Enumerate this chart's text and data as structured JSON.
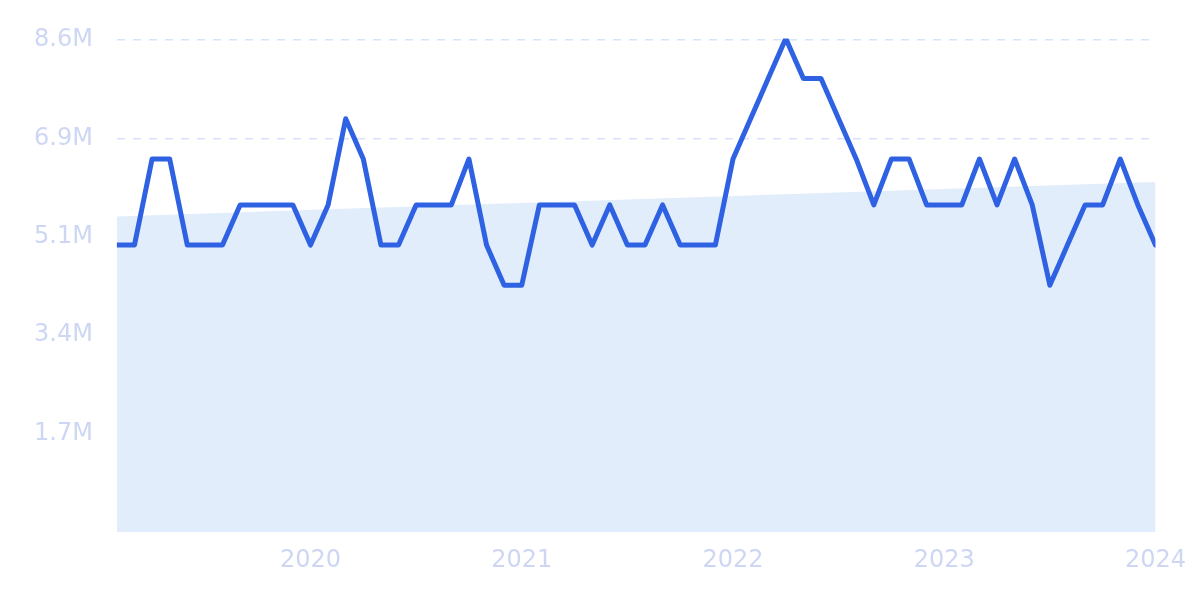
{
  "chart_data": {
    "type": "line",
    "marker": "none",
    "grid": "y",
    "x": [
      "2019-02",
      "2019-03",
      "2019-04",
      "2019-05",
      "2019-06",
      "2019-07",
      "2019-08",
      "2019-09",
      "2019-10",
      "2019-11",
      "2019-12",
      "2020-01",
      "2020-02",
      "2020-03",
      "2020-04",
      "2020-05",
      "2020-06",
      "2020-07",
      "2020-08",
      "2020-09",
      "2020-10",
      "2020-11",
      "2020-12",
      "2021-01",
      "2021-02",
      "2021-03",
      "2021-04",
      "2021-05",
      "2021-06",
      "2021-07",
      "2021-08",
      "2021-09",
      "2021-10",
      "2021-11",
      "2021-12",
      "2022-01",
      "2022-02",
      "2022-03",
      "2022-04",
      "2022-05",
      "2022-06",
      "2022-07",
      "2022-08",
      "2022-09",
      "2022-10",
      "2022-11",
      "2022-12",
      "2023-01",
      "2023-02",
      "2023-03",
      "2023-04",
      "2023-05",
      "2023-06",
      "2023-07",
      "2023-08",
      "2023-09",
      "2023-10",
      "2023-11",
      "2023-12",
      "2024-01"
    ],
    "series": [
      {
        "type": "area",
        "color": "#e2edfb",
        "x": [
          "2019-02",
          "2024-01"
        ],
        "values": [
          5.5,
          6.1
        ]
      },
      {
        "color": "#2f62e3",
        "values": [
          5.0,
          5.0,
          6.5,
          6.5,
          5.0,
          5.0,
          5.0,
          5.7,
          5.7,
          5.7,
          5.7,
          5.0,
          5.7,
          7.2,
          6.5,
          5.0,
          5.0,
          5.7,
          5.7,
          5.7,
          6.5,
          5.0,
          4.3,
          4.3,
          5.7,
          5.7,
          5.7,
          5.0,
          5.7,
          5.0,
          5.0,
          5.7,
          5.0,
          5.0,
          5.0,
          6.5,
          7.2,
          7.9,
          8.6,
          7.9,
          7.9,
          7.2,
          6.5,
          5.7,
          6.5,
          6.5,
          5.7,
          5.7,
          5.7,
          6.5,
          5.7,
          6.5,
          5.7,
          4.3,
          5.0,
          5.7,
          5.7,
          6.5,
          5.7,
          5.0
        ]
      }
    ],
    "xlim": [
      "2019-02",
      "2024-01"
    ],
    "xticks": [
      {
        "value": "2020",
        "label": "2020"
      },
      {
        "value": "2021",
        "label": "2021"
      },
      {
        "value": "2022",
        "label": "2022"
      },
      {
        "value": "2023",
        "label": "2023"
      },
      {
        "value": "2024",
        "label": "2024"
      }
    ],
    "ylim": [
      0,
      8.6
    ],
    "yticks": [
      {
        "value": 1.715,
        "label": "1.7M"
      },
      {
        "value": 3.43,
        "label": "3.4M"
      },
      {
        "value": 5.145,
        "label": "5.1M"
      },
      {
        "value": 6.86,
        "label": "6.9M"
      },
      {
        "value": 8.575,
        "label": "8.6M"
      }
    ]
  }
}
